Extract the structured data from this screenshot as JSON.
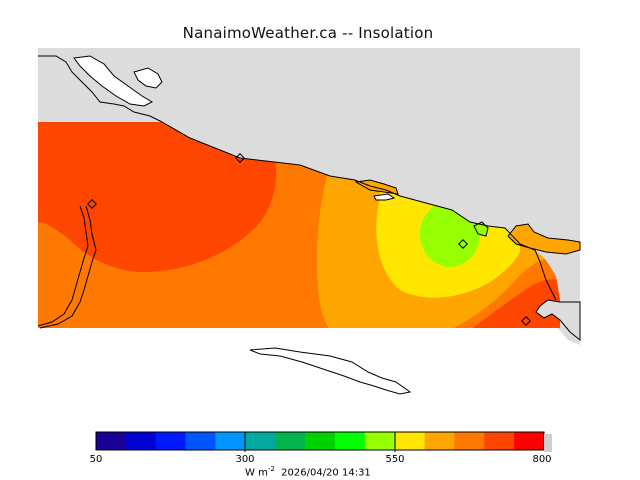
{
  "title": "NanaimoWeather.ca -- Insolation",
  "map": {
    "variable": "Insolation",
    "unit_label": "W m",
    "unit_exp": "-2",
    "timestamp": "2026/04/20 14:31",
    "stations_count": 4
  },
  "colorbar": {
    "min_label": "50",
    "tick1_label": "300",
    "tick2_label": "550",
    "max_label": "800",
    "colors": [
      "#1a0096",
      "#0000d2",
      "#0019ff",
      "#0055ff",
      "#0096ff",
      "#00aaa0",
      "#00b44b",
      "#00d200",
      "#00ff00",
      "#96ff00",
      "#ffe600",
      "#ffa500",
      "#ff7800",
      "#ff4600",
      "#ff0000"
    ],
    "land_color": "#dcdcdc"
  }
}
